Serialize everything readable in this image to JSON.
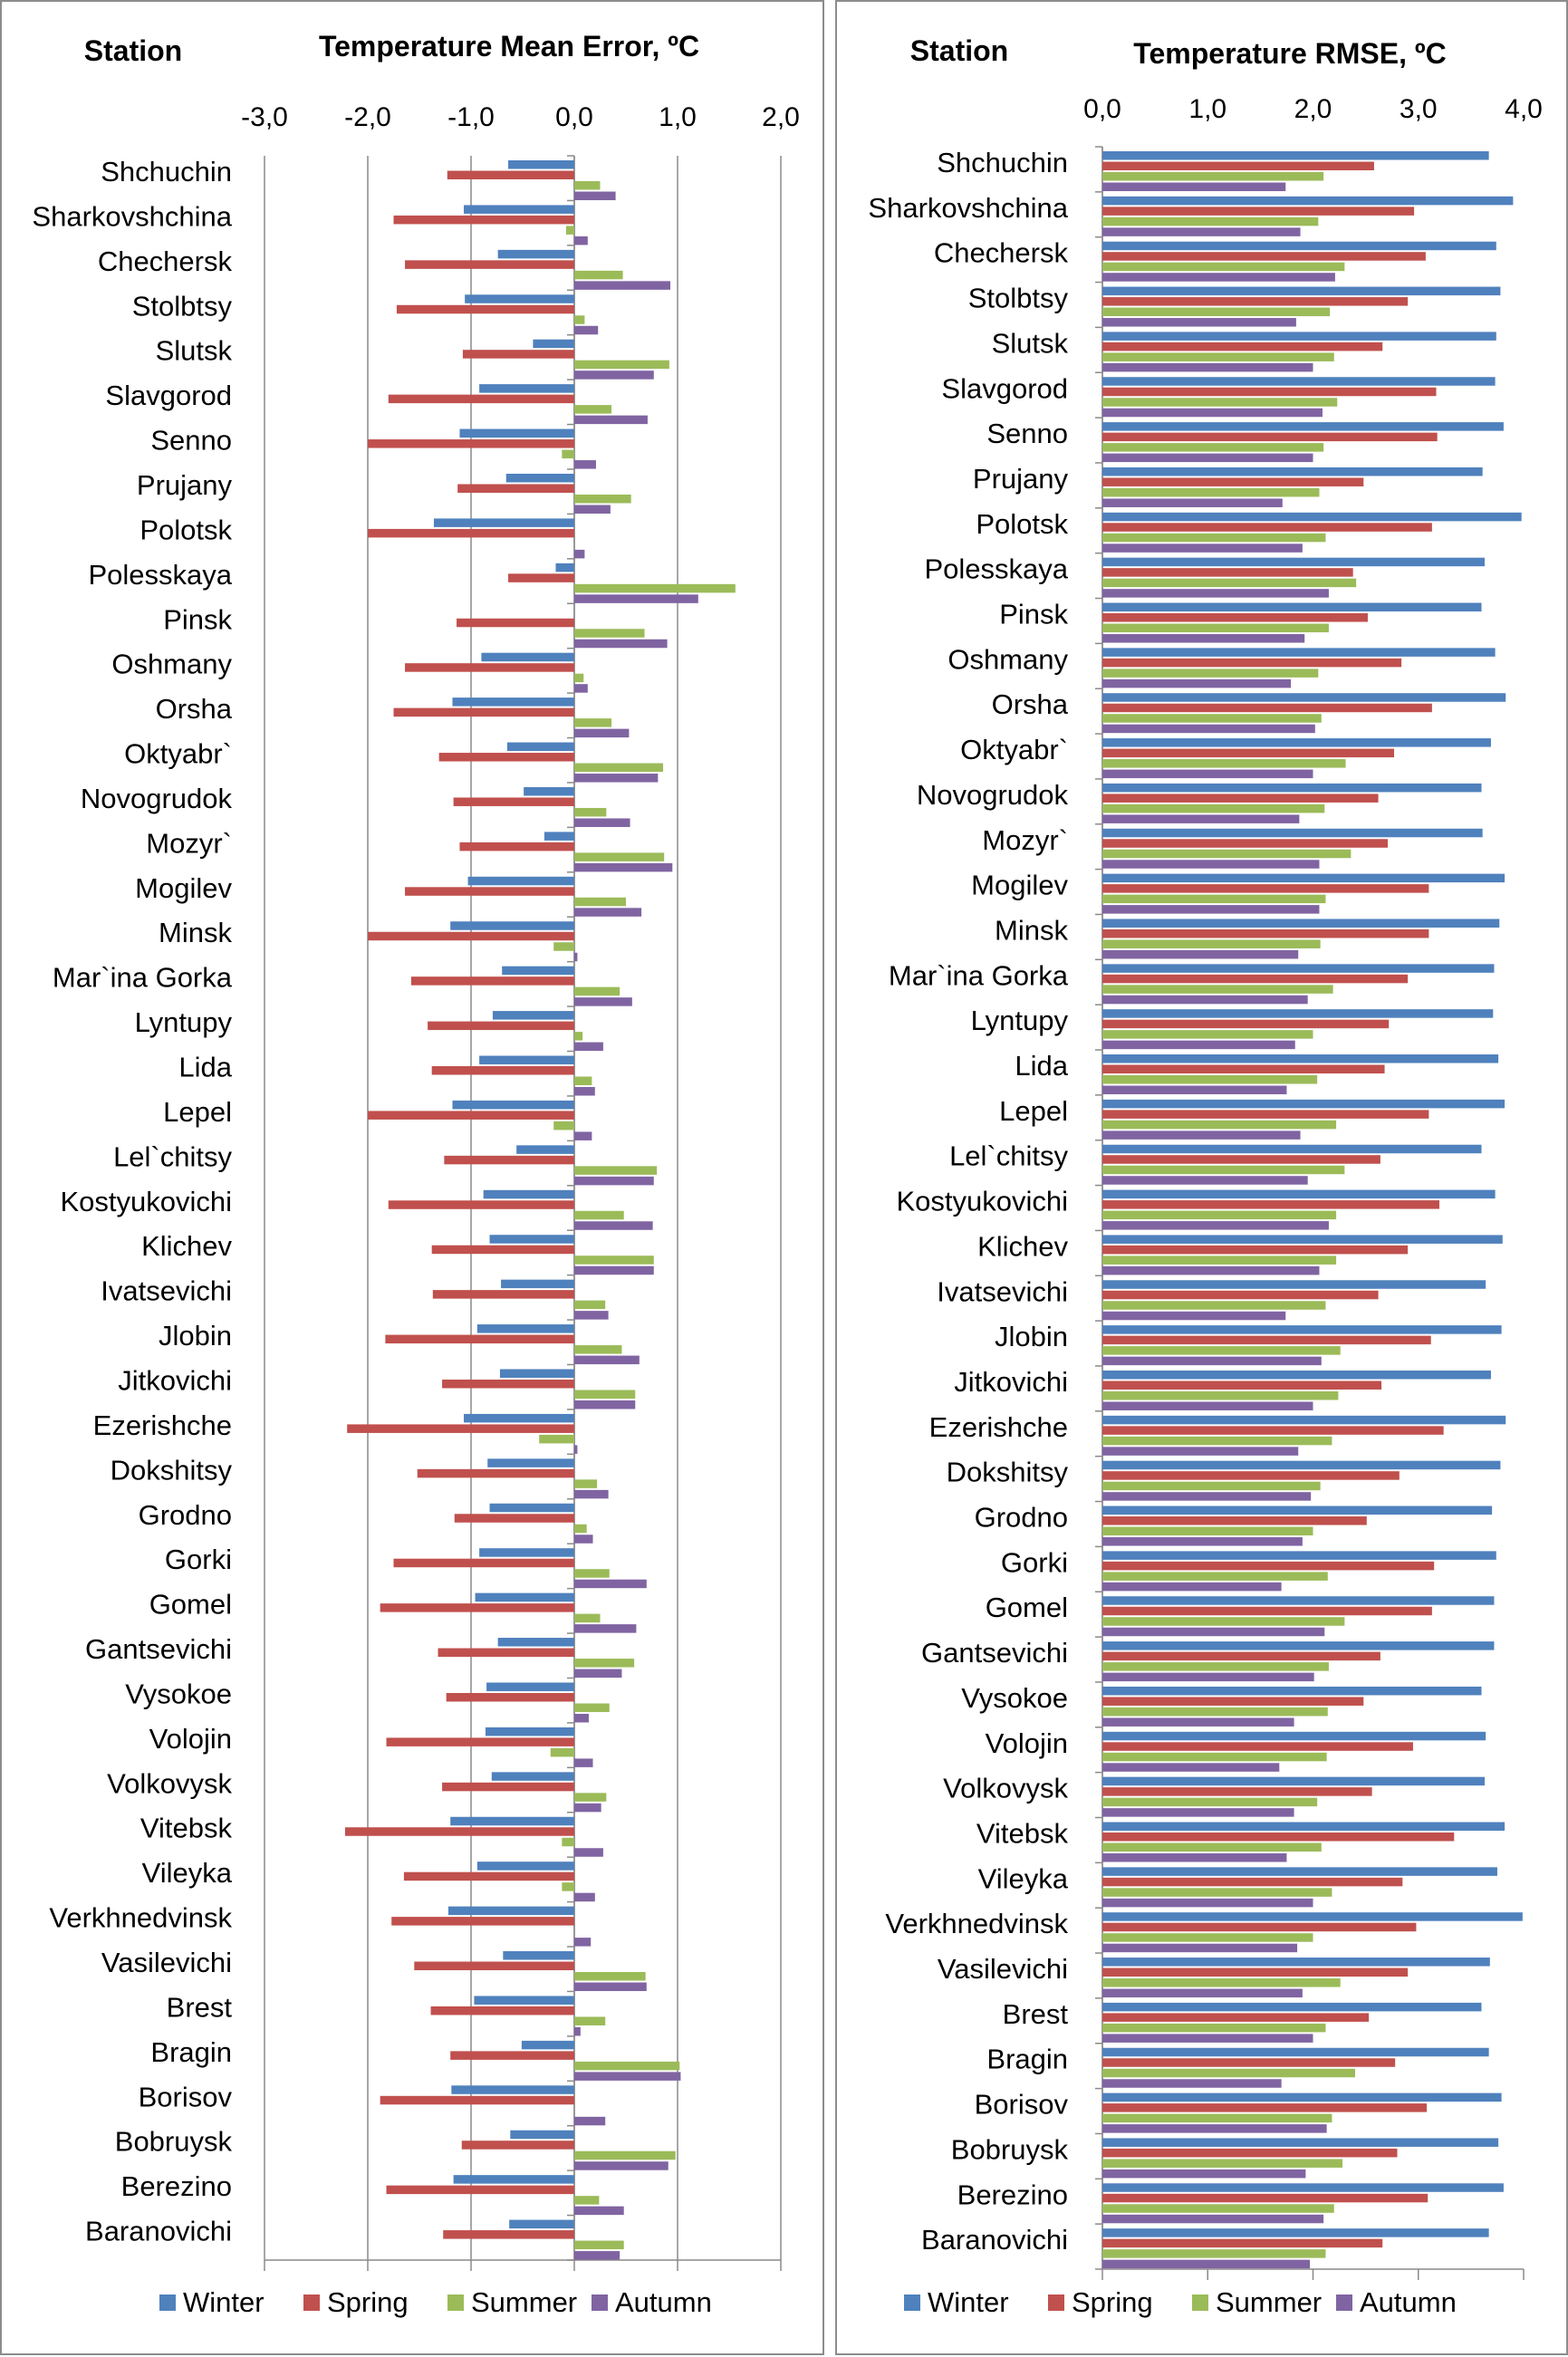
{
  "chart_data": [
    {
      "type": "bar",
      "orientation": "horizontal",
      "title": "Temperature Mean Error, ºC",
      "category_header": "Station",
      "xlim": [
        -3.0,
        2.0
      ],
      "x_ticks": [
        "-3,0",
        "-2,0",
        "-1,0",
        "0,0",
        "1,0",
        "2,0"
      ],
      "x_tick_values": [
        -3,
        -2,
        -1,
        0,
        1,
        2
      ],
      "grid": true,
      "legend_position": "bottom",
      "categories": [
        "Shchuchin",
        "Sharkovshchina",
        "Chechersk",
        "Stolbtsy",
        "Slutsk",
        "Slavgorod",
        "Senno",
        "Prujany",
        "Polotsk",
        "Polesskaya",
        "Pinsk",
        "Oshmany",
        "Orsha",
        "Oktyabr`",
        "Novogrudok",
        "Mozyr`",
        "Mogilev",
        "Minsk",
        "Mar`ina Gorka",
        "Lyntupy",
        "Lida",
        "Lepel",
        "Lel`chitsy",
        "Kostyukovichi",
        "Klichev",
        "Ivatsevichi",
        "Jlobin",
        "Jitkovichi",
        "Ezerishche",
        "Dokshitsy",
        "Grodno",
        "Gorki",
        "Gomel",
        "Gantsevichi",
        "Vysokoe",
        "Volojin",
        "Volkovysk",
        "Vitebsk",
        "Vileyka",
        "Verkhnedvinsk",
        "Vasilevichi",
        "Brest",
        "Bragin",
        "Borisov",
        "Bobruysk",
        "Berezino",
        "Baranovichi"
      ],
      "series": [
        {
          "name": "Winter",
          "color": "#4f81bd",
          "values": [
            -0.64,
            -1.07,
            -0.74,
            -1.06,
            -0.4,
            -0.92,
            -1.11,
            -0.66,
            -1.36,
            -0.18,
            0.0,
            -0.9,
            -1.18,
            -0.65,
            -0.49,
            -0.29,
            -1.03,
            -1.2,
            -0.7,
            -0.79,
            -0.92,
            -1.18,
            -0.56,
            -0.88,
            -0.82,
            -0.71,
            -0.94,
            -0.72,
            -1.07,
            -0.84,
            -0.82,
            -0.92,
            -0.96,
            -0.74,
            -0.85,
            -0.86,
            -0.8,
            -1.2,
            -0.94,
            -1.22,
            -0.69,
            -0.97,
            -0.51,
            -1.19,
            -0.62,
            -1.17,
            -0.63
          ]
        },
        {
          "name": "Spring",
          "color": "#c0504d",
          "values": [
            -1.23,
            -1.75,
            -1.64,
            -1.72,
            -1.08,
            -1.8,
            -2.0,
            -1.13,
            -2.0,
            -0.64,
            -1.14,
            -1.64,
            -1.75,
            -1.31,
            -1.17,
            -1.11,
            -1.64,
            -2.0,
            -1.58,
            -1.42,
            -1.38,
            -2.0,
            -1.26,
            -1.8,
            -1.38,
            -1.37,
            -1.83,
            -1.28,
            -2.2,
            -1.52,
            -1.16,
            -1.75,
            -1.88,
            -1.32,
            -1.24,
            -1.82,
            -1.28,
            -2.22,
            -1.65,
            -1.77,
            -1.55,
            -1.39,
            -1.2,
            -1.88,
            -1.09,
            -1.82,
            -1.27
          ]
        },
        {
          "name": "Summer",
          "color": "#9bbb59",
          "values": [
            0.25,
            -0.08,
            0.47,
            0.1,
            0.92,
            0.36,
            -0.12,
            0.55,
            0.0,
            1.56,
            0.68,
            0.09,
            0.36,
            0.86,
            0.31,
            0.87,
            0.5,
            -0.2,
            0.44,
            0.08,
            0.17,
            -0.2,
            0.8,
            0.48,
            0.77,
            0.3,
            0.46,
            0.59,
            -0.34,
            0.22,
            0.12,
            0.34,
            0.25,
            0.58,
            0.34,
            -0.23,
            0.31,
            -0.12,
            -0.12,
            0.0,
            0.69,
            0.3,
            1.02,
            0.0,
            0.98,
            0.24,
            0.48
          ]
        },
        {
          "name": "Autumn",
          "color": "#8064a2",
          "values": [
            0.4,
            0.13,
            0.93,
            0.23,
            0.77,
            0.71,
            0.21,
            0.35,
            0.1,
            1.2,
            0.9,
            0.13,
            0.53,
            0.81,
            0.54,
            0.95,
            0.65,
            0.03,
            0.56,
            0.28,
            0.2,
            0.17,
            0.77,
            0.76,
            0.77,
            0.33,
            0.63,
            0.59,
            0.03,
            0.33,
            0.18,
            0.7,
            0.6,
            0.46,
            0.14,
            0.18,
            0.26,
            0.28,
            0.2,
            0.16,
            0.7,
            0.06,
            1.03,
            0.3,
            0.91,
            0.48,
            0.44
          ]
        }
      ]
    },
    {
      "type": "bar",
      "orientation": "horizontal",
      "title": "Temperature RMSE, ºC",
      "category_header": "Station",
      "xlim": [
        0.0,
        4.0
      ],
      "x_ticks": [
        "0,0",
        "1,0",
        "2,0",
        "3,0",
        "4,0"
      ],
      "x_tick_values": [
        0,
        1,
        2,
        3,
        4
      ],
      "grid": false,
      "legend_position": "bottom",
      "categories": [
        "Shchuchin",
        "Sharkovshchina",
        "Chechersk",
        "Stolbtsy",
        "Slutsk",
        "Slavgorod",
        "Senno",
        "Prujany",
        "Polotsk",
        "Polesskaya",
        "Pinsk",
        "Oshmany",
        "Orsha",
        "Oktyabr`",
        "Novogrudok",
        "Mozyr`",
        "Mogilev",
        "Minsk",
        "Mar`ina Gorka",
        "Lyntupy",
        "Lida",
        "Lepel",
        "Lel`chitsy",
        "Kostyukovichi",
        "Klichev",
        "Ivatsevichi",
        "Jlobin",
        "Jitkovichi",
        "Ezerishche",
        "Dokshitsy",
        "Grodno",
        "Gorki",
        "Gomel",
        "Gantsevichi",
        "Vysokoe",
        "Volojin",
        "Volkovysk",
        "Vitebsk",
        "Vileyka",
        "Verkhnedvinsk",
        "Vasilevichi",
        "Brest",
        "Bragin",
        "Borisov",
        "Bobruysk",
        "Berezino",
        "Baranovichi"
      ],
      "series": [
        {
          "name": "Winter",
          "color": "#4f81bd",
          "values": [
            3.67,
            3.9,
            3.74,
            3.78,
            3.74,
            3.73,
            3.81,
            3.61,
            3.98,
            3.63,
            3.6,
            3.73,
            3.83,
            3.69,
            3.6,
            3.61,
            3.82,
            3.77,
            3.72,
            3.71,
            3.76,
            3.82,
            3.6,
            3.73,
            3.8,
            3.64,
            3.79,
            3.69,
            3.83,
            3.78,
            3.7,
            3.74,
            3.72,
            3.72,
            3.6,
            3.64,
            3.63,
            3.82,
            3.75,
            3.99,
            3.68,
            3.6,
            3.67,
            3.79,
            3.76,
            3.81,
            3.67
          ]
        },
        {
          "name": "Spring",
          "color": "#c0504d",
          "values": [
            2.58,
            2.96,
            3.07,
            2.9,
            2.66,
            3.17,
            3.18,
            2.48,
            3.13,
            2.38,
            2.52,
            2.84,
            3.13,
            2.77,
            2.62,
            2.71,
            3.1,
            3.1,
            2.9,
            2.72,
            2.68,
            3.1,
            2.64,
            3.2,
            2.9,
            2.62,
            3.12,
            2.65,
            3.24,
            2.82,
            2.51,
            3.15,
            3.13,
            2.64,
            2.48,
            2.95,
            2.56,
            3.34,
            2.85,
            2.98,
            2.9,
            2.53,
            2.78,
            3.08,
            2.8,
            3.09,
            2.66
          ]
        },
        {
          "name": "Summer",
          "color": "#9bbb59",
          "values": [
            2.1,
            2.05,
            2.3,
            2.16,
            2.2,
            2.23,
            2.1,
            2.06,
            2.12,
            2.41,
            2.15,
            2.05,
            2.08,
            2.31,
            2.11,
            2.36,
            2.12,
            2.07,
            2.19,
            2.0,
            2.04,
            2.22,
            2.3,
            2.22,
            2.22,
            2.12,
            2.26,
            2.24,
            2.18,
            2.07,
            2.0,
            2.14,
            2.3,
            2.15,
            2.14,
            2.13,
            2.04,
            2.08,
            2.18,
            2.0,
            2.26,
            2.12,
            2.4,
            2.18,
            2.28,
            2.2,
            2.12
          ]
        },
        {
          "name": "Autumn",
          "color": "#8064a2",
          "values": [
            1.74,
            1.88,
            2.21,
            1.84,
            2.0,
            2.09,
            2.0,
            1.71,
            1.9,
            2.15,
            1.92,
            1.79,
            2.02,
            2.0,
            1.87,
            2.06,
            2.06,
            1.86,
            1.95,
            1.83,
            1.75,
            1.88,
            1.95,
            2.15,
            2.06,
            1.74,
            2.08,
            2.0,
            1.86,
            1.98,
            1.9,
            1.7,
            2.11,
            2.01,
            1.82,
            1.68,
            1.82,
            1.75,
            2.0,
            1.85,
            1.9,
            2.0,
            1.7,
            2.13,
            1.93,
            2.1,
            1.97
          ]
        }
      ]
    }
  ]
}
